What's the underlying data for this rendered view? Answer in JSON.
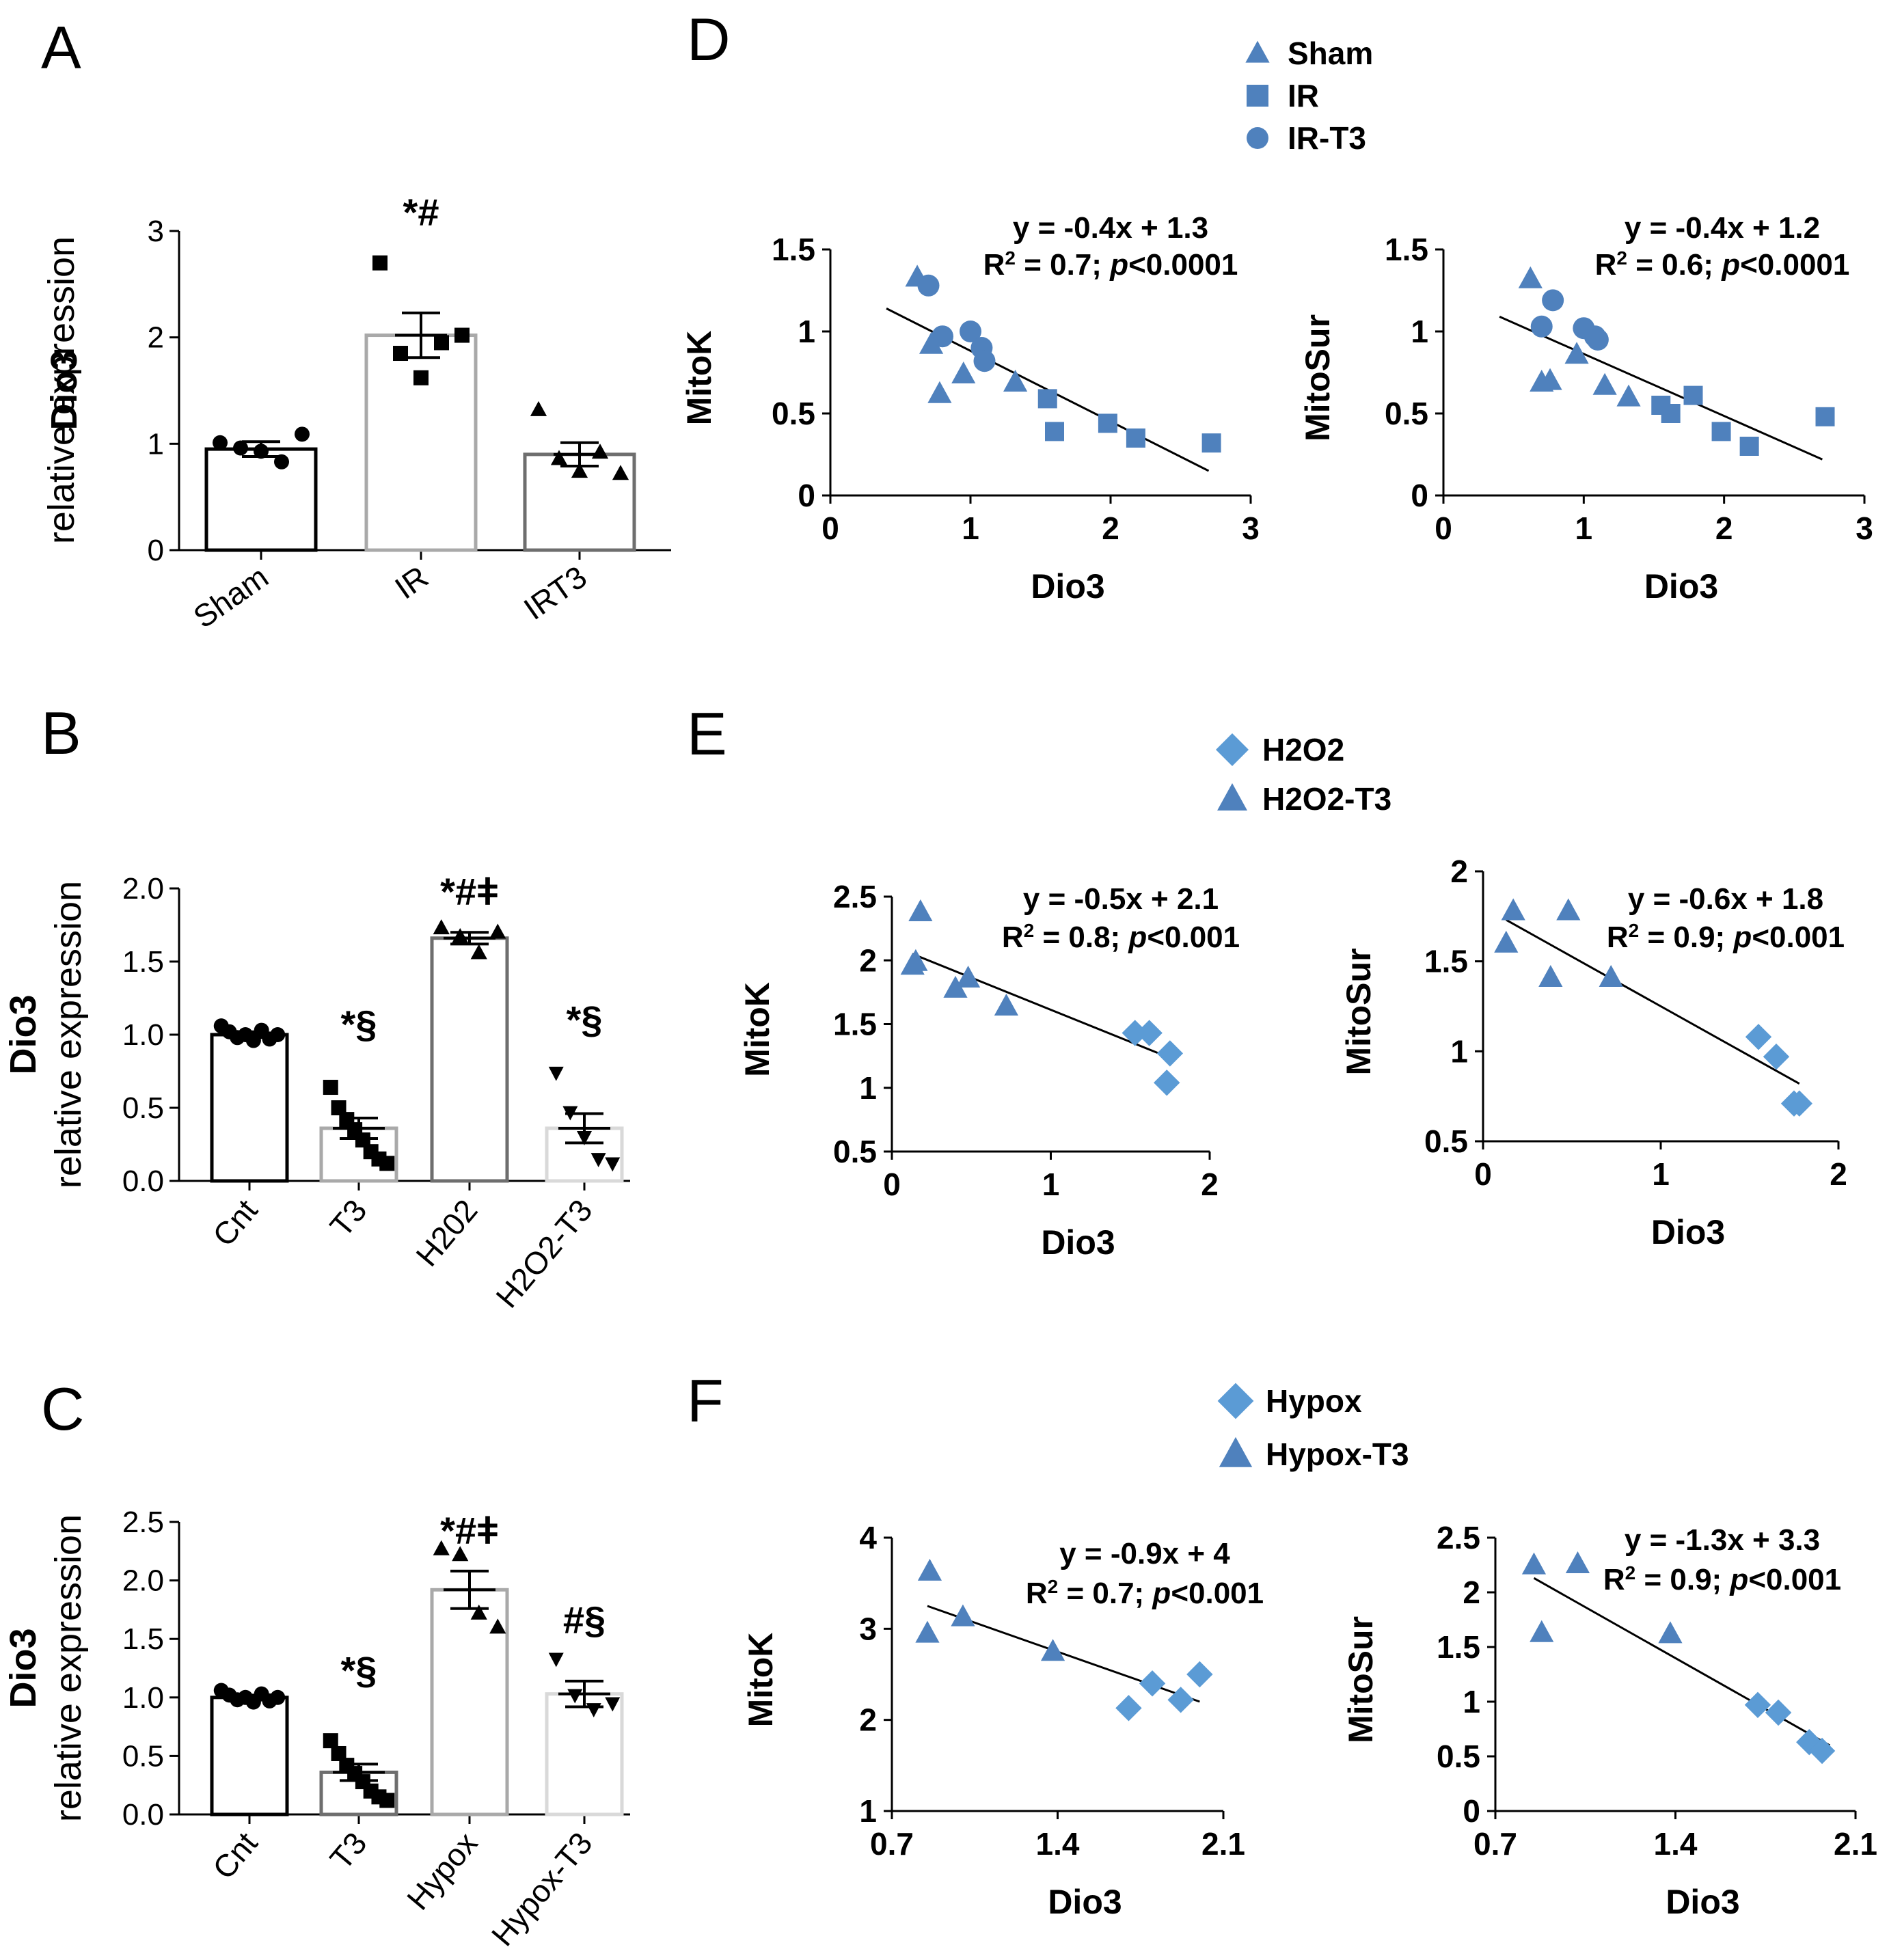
{
  "colors": {
    "marker": "#4f81bd",
    "marker_light": "#5b9bd5",
    "bar_black": "#000000",
    "bar_gray_dark": "#6e6e6e",
    "bar_gray": "#a9a9a9",
    "bar_gray_light": "#d9d9d9"
  },
  "chart_data": [
    {
      "id": "A",
      "type": "bar",
      "panel_label": "A",
      "ylabel_line1": "Dio3",
      "ylabel_line2": "relative expression",
      "ylim": [
        0,
        3
      ],
      "yticks": [
        0,
        1,
        2,
        3
      ],
      "ytick_labels": [
        "0",
        "1",
        "2",
        "3"
      ],
      "categories": [
        "Sham",
        "IR",
        "IRT3"
      ],
      "means": [
        0.95,
        2.02,
        0.9
      ],
      "sem": [
        0.07,
        0.21,
        0.11
      ],
      "points": [
        [
          1.01,
          0.96,
          0.93,
          0.83,
          1.09
        ],
        [
          2.7,
          1.85,
          1.62,
          1.95,
          2.02
        ],
        [
          1.32,
          0.86,
          0.74,
          0.92,
          0.72
        ]
      ],
      "markers": [
        "circle",
        "square",
        "triangle"
      ],
      "bar_colors": [
        "#000000",
        "#a9a9a9",
        "#6e6e6e"
      ],
      "annotations": [
        "",
        "*#",
        ""
      ]
    },
    {
      "id": "B",
      "type": "bar",
      "panel_label": "B",
      "ylabel_line1": "Dio3",
      "ylabel_line2": "relative expression",
      "ylim": [
        0,
        2
      ],
      "yticks": [
        0,
        0.5,
        1,
        1.5,
        2
      ],
      "ytick_labels": [
        "0.0",
        "0.5",
        "1.0",
        "1.5",
        "2.0"
      ],
      "categories": [
        "Cnt",
        "T3",
        "H202",
        "H2O2-T3"
      ],
      "means": [
        1.0,
        0.36,
        1.66,
        0.36
      ],
      "sem": [
        0.02,
        0.07,
        0.04,
        0.1
      ],
      "points": [
        [
          1.06,
          1.02,
          0.98,
          1.0,
          0.96,
          1.03,
          0.97,
          1.0
        ],
        [
          0.64,
          0.5,
          0.42,
          0.35,
          0.28,
          0.2,
          0.15,
          0.12
        ],
        [
          1.73,
          1.67,
          1.56,
          1.7
        ],
        [
          0.74,
          0.47,
          0.3,
          0.15,
          0.12
        ]
      ],
      "markers": [
        "circle",
        "square",
        "triangle",
        "down-triangle"
      ],
      "bar_colors": [
        "#000000",
        "#a9a9a9",
        "#6e6e6e",
        "#d9d9d9"
      ],
      "annotations": [
        "",
        "*§",
        "*#ǂ",
        "*§"
      ]
    },
    {
      "id": "C",
      "type": "bar",
      "panel_label": "C",
      "ylabel_line1": "Dio3",
      "ylabel_line2": "relative expression",
      "ylim": [
        0,
        2.5
      ],
      "yticks": [
        0,
        0.5,
        1,
        1.5,
        2,
        2.5
      ],
      "ytick_labels": [
        "0.0",
        "0.5",
        "1.0",
        "1.5",
        "2.0",
        "2.5"
      ],
      "categories": [
        "Cnt",
        "T3",
        "Hypox",
        "Hypox-T3"
      ],
      "means": [
        1.0,
        0.36,
        1.92,
        1.03
      ],
      "sem": [
        0.02,
        0.07,
        0.16,
        0.11
      ],
      "points": [
        [
          1.06,
          1.02,
          0.98,
          1.0,
          0.96,
          1.03,
          0.97,
          1.0
        ],
        [
          0.63,
          0.52,
          0.42,
          0.35,
          0.28,
          0.2,
          0.15,
          0.12
        ],
        [
          2.27,
          2.22,
          1.72,
          1.6
        ],
        [
          1.33,
          1.02,
          0.9,
          0.95
        ]
      ],
      "markers": [
        "circle",
        "square",
        "triangle",
        "down-triangle"
      ],
      "bar_colors": [
        "#000000",
        "#6e6e6e",
        "#a9a9a9",
        "#d9d9d9"
      ],
      "annotations": [
        "",
        "*§",
        "*#ǂ",
        "#§"
      ]
    },
    {
      "id": "D1",
      "type": "scatter",
      "panel_label": "D",
      "xlabel": "Dio3",
      "ylabel": "MitoK",
      "xlim": [
        0,
        3
      ],
      "ylim": [
        0,
        1.5
      ],
      "xticks": [
        0,
        1,
        2,
        3
      ],
      "xtick_labels": [
        "0",
        "1",
        "2",
        "3"
      ],
      "yticks": [
        0,
        0.5,
        1,
        1.5
      ],
      "ytick_labels": [
        "0",
        "0.5",
        "1",
        "1.5"
      ],
      "equation": "y = -0.4x + 1.3",
      "r2_prefix": "R",
      "r2_sup": "2",
      "r2_mid": " = 0.7; ",
      "p_italic": "p",
      "p_rest": "<0.0001",
      "trend": [
        [
          0.4,
          1.14
        ],
        [
          2.7,
          0.15
        ]
      ],
      "series": [
        {
          "name": "Sham",
          "marker": "triangle",
          "points": [
            [
              0.62,
              1.33
            ],
            [
              0.72,
              0.92
            ],
            [
              0.78,
              0.62
            ],
            [
              0.95,
              0.74
            ],
            [
              1.32,
              0.69
            ]
          ]
        },
        {
          "name": "IR",
          "marker": "square",
          "points": [
            [
              1.55,
              0.59
            ],
            [
              1.6,
              0.39
            ],
            [
              1.98,
              0.44
            ],
            [
              2.18,
              0.35
            ],
            [
              2.72,
              0.32
            ]
          ]
        },
        {
          "name": "IR-T3",
          "marker": "circle",
          "points": [
            [
              0.7,
              1.28
            ],
            [
              0.8,
              0.97
            ],
            [
              1.0,
              1.0
            ],
            [
              1.08,
              0.9
            ],
            [
              1.1,
              0.82
            ]
          ]
        }
      ]
    },
    {
      "id": "D2",
      "type": "scatter",
      "xlabel": "Dio3",
      "ylabel": "MitoSur",
      "xlim": [
        0,
        3
      ],
      "ylim": [
        0,
        1.5
      ],
      "xticks": [
        0,
        1,
        2,
        3
      ],
      "xtick_labels": [
        "0",
        "1",
        "2",
        "3"
      ],
      "yticks": [
        0,
        0.5,
        1,
        1.5
      ],
      "ytick_labels": [
        "0",
        "0.5",
        "1",
        "1.5"
      ],
      "equation": "y = -0.4x + 1.2",
      "r2_prefix": "R",
      "r2_sup": "2",
      "r2_mid": " = 0.6; ",
      "p_italic": "p",
      "p_rest": "<0.0001",
      "trend": [
        [
          0.4,
          1.09
        ],
        [
          2.7,
          0.22
        ]
      ],
      "series": [
        {
          "name": "Sham",
          "marker": "triangle",
          "points": [
            [
              0.62,
              1.32
            ],
            [
              0.7,
              0.69
            ],
            [
              0.76,
              0.7
            ],
            [
              0.95,
              0.86
            ],
            [
              1.15,
              0.67
            ],
            [
              1.32,
              0.6
            ]
          ]
        },
        {
          "name": "IR",
          "marker": "square",
          "points": [
            [
              1.55,
              0.55
            ],
            [
              1.62,
              0.5
            ],
            [
              1.78,
              0.61
            ],
            [
              1.98,
              0.39
            ],
            [
              2.18,
              0.3
            ],
            [
              2.72,
              0.48
            ]
          ]
        },
        {
          "name": "IR-T3",
          "marker": "circle",
          "points": [
            [
              0.7,
              1.03
            ],
            [
              0.78,
              1.19
            ],
            [
              1.0,
              1.02
            ],
            [
              1.08,
              0.97
            ],
            [
              1.1,
              0.95
            ]
          ]
        }
      ]
    },
    {
      "id": "E1",
      "type": "scatter",
      "panel_label": "E",
      "xlabel": "Dio3",
      "ylabel": "MitoK",
      "xlim": [
        0,
        2
      ],
      "ylim": [
        0.5,
        2.5
      ],
      "xticks": [
        0,
        1,
        2
      ],
      "xtick_labels": [
        "0",
        "1",
        "2"
      ],
      "yticks": [
        0.5,
        1,
        1.5,
        2,
        2.5
      ],
      "ytick_labels": [
        "0.5",
        "1",
        "1.5",
        "2",
        "2.5"
      ],
      "equation": "y = -0.5x + 2.1",
      "r2_prefix": "R",
      "r2_sup": "2",
      "r2_mid": " = 0.8; ",
      "p_italic": "p",
      "p_rest": "<0.001",
      "trend": [
        [
          0.13,
          2.05
        ],
        [
          1.76,
          1.23
        ]
      ],
      "series": [
        {
          "name": "H2O2",
          "marker": "diamond",
          "points": [
            [
              1.53,
              1.43
            ],
            [
              1.62,
              1.43
            ],
            [
              1.75,
              1.27
            ],
            [
              1.73,
              1.04
            ]
          ]
        },
        {
          "name": "H2O2-T3",
          "marker": "triangle",
          "points": [
            [
              0.18,
              2.38
            ],
            [
              0.13,
              1.96
            ],
            [
              0.15,
              1.99
            ],
            [
              0.4,
              1.78
            ],
            [
              0.48,
              1.86
            ],
            [
              0.72,
              1.64
            ]
          ]
        }
      ]
    },
    {
      "id": "E2",
      "type": "scatter",
      "xlabel": "Dio3",
      "ylabel": "MitoSur",
      "xlim": [
        0,
        2
      ],
      "ylim": [
        0.5,
        2
      ],
      "xticks": [
        0,
        1,
        2
      ],
      "xtick_labels": [
        "0",
        "1",
        "2"
      ],
      "yticks": [
        0.5,
        1,
        1.5,
        2
      ],
      "ytick_labels": [
        "0.5",
        "1",
        "1.5",
        "2"
      ],
      "equation": "y = -0.6x + 1.8",
      "r2_prefix": "R",
      "r2_sup": "2",
      "r2_mid": " = 0.9; ",
      "p_italic": "p",
      "p_rest": "<0.001",
      "trend": [
        [
          0.13,
          1.73
        ],
        [
          1.78,
          0.82
        ]
      ],
      "series": [
        {
          "name": "H2O2",
          "marker": "diamond",
          "points": [
            [
              1.55,
              1.08
            ],
            [
              1.65,
              0.97
            ],
            [
              1.75,
              0.71
            ],
            [
              1.78,
              0.71
            ]
          ]
        },
        {
          "name": "H2O2-T3",
          "marker": "triangle",
          "points": [
            [
              0.17,
              1.78
            ],
            [
              0.48,
              1.78
            ],
            [
              0.13,
              1.6
            ],
            [
              0.38,
              1.41
            ],
            [
              0.72,
              1.41
            ]
          ]
        }
      ]
    },
    {
      "id": "F1",
      "type": "scatter",
      "panel_label": "F",
      "xlabel": "Dio3",
      "ylabel": "MitoK",
      "xlim": [
        0.7,
        2.1
      ],
      "ylim": [
        1,
        4
      ],
      "xticks": [
        0.7,
        1.4,
        2.1
      ],
      "xtick_labels": [
        "0.7",
        "1.4",
        "2.1"
      ],
      "yticks": [
        1,
        2,
        3,
        4
      ],
      "ytick_labels": [
        "1",
        "2",
        "3",
        "4"
      ],
      "equation": "y = -0.9x + 4",
      "r2_prefix": "R",
      "r2_sup": "2",
      "r2_mid": " = 0.7; ",
      "p_italic": "p",
      "p_rest": "<0.001",
      "trend": [
        [
          0.85,
          3.25
        ],
        [
          2.0,
          2.2
        ]
      ],
      "series": [
        {
          "name": "Hypox",
          "marker": "diamond",
          "points": [
            [
              1.7,
              2.13
            ],
            [
              1.8,
              2.4
            ],
            [
              1.92,
              2.22
            ],
            [
              2.0,
              2.5
            ]
          ]
        },
        {
          "name": "Hypox-T3",
          "marker": "triangle",
          "points": [
            [
              0.86,
              3.63
            ],
            [
              0.85,
              2.95
            ],
            [
              1.0,
              3.13
            ],
            [
              1.38,
              2.75
            ]
          ]
        }
      ]
    },
    {
      "id": "F2",
      "type": "scatter",
      "xlabel": "Dio3",
      "ylabel": "MitoSur",
      "xlim": [
        0.7,
        2.1
      ],
      "ylim": [
        0,
        2.5
      ],
      "xticks": [
        0.7,
        1.4,
        2.1
      ],
      "xtick_labels": [
        "0.7",
        "1.4",
        "2.1"
      ],
      "yticks": [
        0,
        0.5,
        1,
        1.5,
        2,
        2.5
      ],
      "ytick_labels": [
        "0",
        "0.5",
        "1",
        "1.5",
        "2",
        "2.5"
      ],
      "equation": "y = -1.3x + 3.3",
      "r2_prefix": "R",
      "r2_sup": "2",
      "r2_mid": " = 0.9; ",
      "p_italic": "p",
      "p_rest": "<0.001",
      "trend": [
        [
          0.85,
          2.13
        ],
        [
          2.0,
          0.6
        ]
      ],
      "series": [
        {
          "name": "Hypox",
          "marker": "diamond",
          "points": [
            [
              1.72,
              0.97
            ],
            [
              1.8,
              0.9
            ],
            [
              1.92,
              0.63
            ],
            [
              1.97,
              0.55
            ]
          ]
        },
        {
          "name": "Hypox-T3",
          "marker": "triangle",
          "points": [
            [
              0.85,
              2.25
            ],
            [
              1.02,
              2.26
            ],
            [
              0.88,
              1.63
            ],
            [
              1.38,
              1.62
            ]
          ]
        }
      ]
    }
  ],
  "legends": {
    "D": {
      "items": [
        {
          "label": "Sham",
          "marker": "triangle"
        },
        {
          "label": "IR",
          "marker": "square"
        },
        {
          "label": "IR-T3",
          "marker": "circle"
        }
      ]
    },
    "E": {
      "items": [
        {
          "label": "H2O2",
          "marker": "diamond"
        },
        {
          "label": "H2O2-T3",
          "marker": "triangle"
        }
      ]
    },
    "F": {
      "items": [
        {
          "label": "Hypox",
          "marker": "diamond"
        },
        {
          "label": "Hypox-T3",
          "marker": "triangle"
        }
      ]
    }
  }
}
